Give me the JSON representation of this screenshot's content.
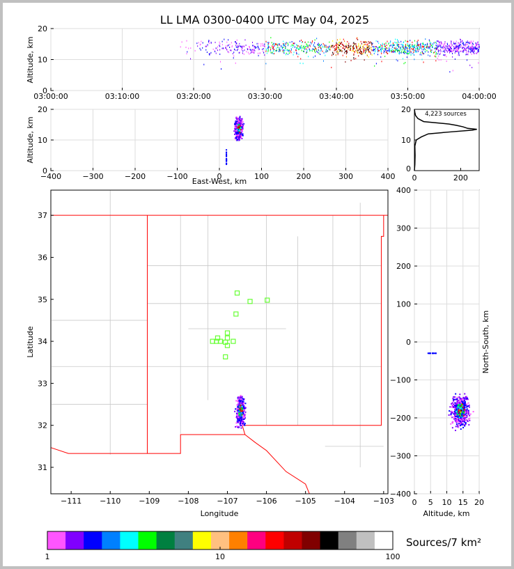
{
  "chart_data": [
    {
      "type": "scatter",
      "title": "LL LMA 0300-0400 UTC May 04, 2025",
      "name": "altitude-time",
      "ylabel": "Altitude, km",
      "ylim": [
        0,
        20
      ],
      "yticks": [
        "0",
        "10",
        "20"
      ],
      "xlim_minutes": [
        0,
        60
      ],
      "xticks": [
        "03:00:00",
        "03:10:00",
        "03:20:00",
        "03:30:00",
        "03:40:00",
        "03:50:00",
        "04:00:00"
      ],
      "activity": {
        "start_minute": 18,
        "end_minute": 60,
        "peak_alt_km": 14
      }
    },
    {
      "type": "scatter",
      "name": "altitude-eastwest",
      "xlabel": "East-West, km",
      "ylabel": "Altitude, km",
      "xlim": [
        -400,
        400
      ],
      "ylim": [
        0,
        20
      ],
      "xticks": [
        "−400",
        "−300",
        "−200",
        "−100",
        "0",
        "100",
        "200",
        "300",
        "400"
      ],
      "yticks": [
        "0",
        "10",
        "20"
      ],
      "cluster": {
        "ew_km": 45,
        "alt_km": 14
      }
    },
    {
      "type": "line",
      "name": "altitude-histogram",
      "annotation": "4,223 sources",
      "xlim": [
        0,
        280
      ],
      "ylim": [
        0,
        20
      ],
      "xticks": [
        "0",
        "200"
      ],
      "yticks": [
        "0",
        "10",
        "20"
      ],
      "profile": [
        [
          0,
          0
        ],
        [
          2,
          2
        ],
        [
          3,
          5
        ],
        [
          2,
          8
        ],
        [
          8,
          10
        ],
        [
          30,
          11
        ],
        [
          60,
          12
        ],
        [
          150,
          12.6
        ],
        [
          250,
          13.2
        ],
        [
          270,
          13.5
        ],
        [
          230,
          13.8
        ],
        [
          210,
          14.3
        ],
        [
          180,
          14.8
        ],
        [
          150,
          15.2
        ],
        [
          40,
          16
        ],
        [
          15,
          17
        ],
        [
          5,
          18
        ],
        [
          2,
          19
        ],
        [
          0,
          20
        ]
      ]
    },
    {
      "type": "scatter",
      "name": "plan-view-map",
      "xlabel": "Longitude",
      "ylabel": "Latitude",
      "xlim": [
        -111.52,
        -102.89
      ],
      "ylim": [
        30.37,
        37.6
      ],
      "xticks": [
        "−111",
        "−110",
        "−109",
        "−108",
        "−107",
        "−106",
        "−105",
        "−104",
        "−103"
      ],
      "yticks": [
        "31",
        "32",
        "33",
        "34",
        "35",
        "36",
        "37"
      ],
      "stations": [
        [
          -106.75,
          35.15
        ],
        [
          -106.42,
          34.95
        ],
        [
          -105.98,
          34.98
        ],
        [
          -106.78,
          34.65
        ],
        [
          -107.0,
          34.2
        ],
        [
          -107.25,
          34.08
        ],
        [
          -107.0,
          34.08
        ],
        [
          -107.38,
          34.0
        ],
        [
          -107.28,
          34.0
        ],
        [
          -107.18,
          34.0
        ],
        [
          -107.05,
          33.98
        ],
        [
          -106.85,
          34.0
        ],
        [
          -107.0,
          33.9
        ],
        [
          -107.05,
          33.63
        ]
      ],
      "storm": {
        "lon": -106.68,
        "lat": 32.35
      }
    },
    {
      "type": "scatter",
      "name": "altitude-northsouth",
      "xlabel": "Altitude, km",
      "ylabel": "North-South, km",
      "xlim": [
        0,
        20
      ],
      "ylim": [
        -400,
        400
      ],
      "xticks": [
        "0",
        "5",
        "10",
        "15",
        "20"
      ],
      "yticks": [
        "−400",
        "−300",
        "−200",
        "−100",
        "0",
        "100",
        "200",
        "300",
        "400"
      ],
      "cluster": {
        "alt_km": 14,
        "ns_km": -180
      }
    },
    {
      "type": "colorbar",
      "name": "density-colorbar",
      "label": "Sources/7 km²",
      "ticks": [
        "1",
        "10",
        "100"
      ],
      "colors": [
        "#ff55ff",
        "#8000ff",
        "#0000ff",
        "#0080ff",
        "#00ffff",
        "#00ff00",
        "#008040",
        "#408080",
        "#ffff00",
        "#ffc080",
        "#ff8000",
        "#ff0080",
        "#ff0000",
        "#c00000",
        "#800000",
        "#000000",
        "#808080",
        "#c0c0c0",
        "#ffffff"
      ]
    }
  ]
}
